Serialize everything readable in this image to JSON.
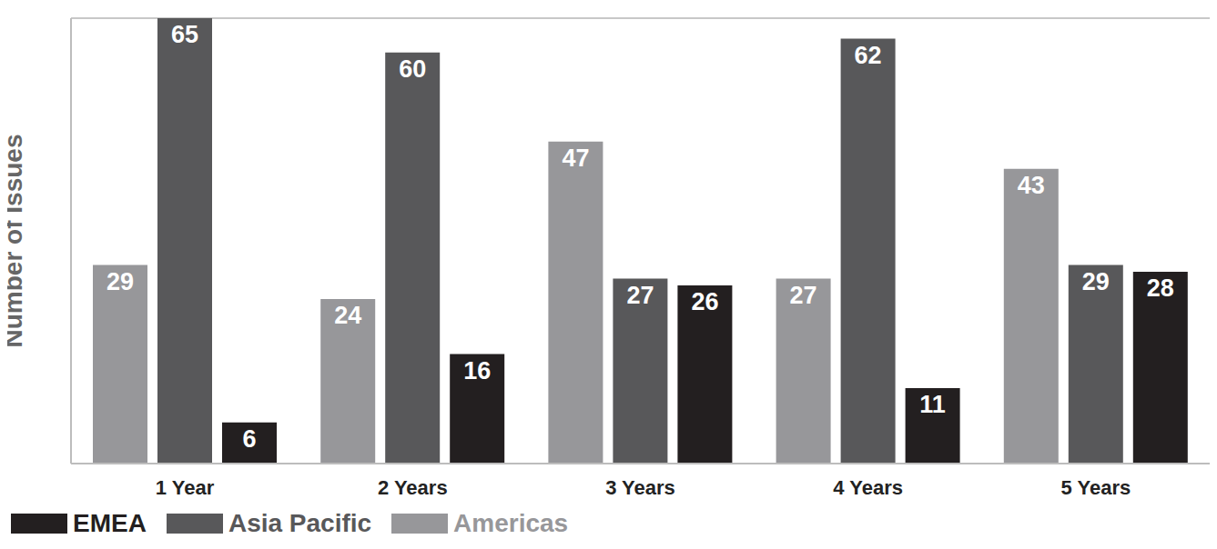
{
  "chart_data": {
    "type": "bar",
    "y_label": "Number of Issues",
    "categories": [
      "1 Year",
      "2 Years",
      "3 Years",
      "4 Years",
      "5 Years"
    ],
    "series": [
      {
        "name": "Americas",
        "color": "#97979a",
        "values": [
          29,
          24,
          47,
          27,
          43
        ]
      },
      {
        "name": "Asia Pacific",
        "color": "#58585a",
        "values": [
          65,
          60,
          27,
          62,
          29
        ]
      },
      {
        "name": "EMEA",
        "color": "#231f20",
        "values": [
          6,
          16,
          26,
          11,
          28
        ]
      }
    ],
    "ylim": [
      0,
      65
    ],
    "yticks": [
      0,
      10,
      20,
      30,
      40,
      50,
      60
    ],
    "grid": true,
    "data_labels": true,
    "legend": "bottom",
    "tick_labels": "x"
  }
}
